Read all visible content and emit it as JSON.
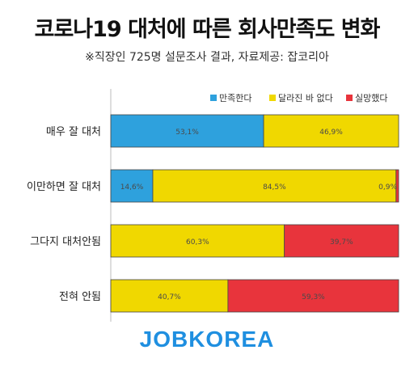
{
  "title": "코로나19 대처에 따른 회사만족도 변화",
  "subtitle": "※직장인 725명 설문조사 결과, 자료제공: 잡코리아",
  "logo_text": "JOBKOREA",
  "colors": {
    "satisfied": "#2ea1dd",
    "unchanged": "#f0d800",
    "disappointed": "#e8343c"
  },
  "chart_data": {
    "type": "bar",
    "orientation": "horizontal",
    "stacked": true,
    "categories": [
      "매우 잘 대처",
      "이만하면 잘 대처",
      "그다지 대처안됨",
      "전혀 안됨"
    ],
    "series": [
      {
        "name": "만족한다",
        "values": [
          53.1,
          14.6,
          0,
          0
        ],
        "labels": [
          "53,1%",
          "14,6%",
          "",
          ""
        ]
      },
      {
        "name": "달라진 바 없다",
        "values": [
          46.9,
          84.5,
          60.3,
          40.7
        ],
        "labels": [
          "46,9%",
          "84,5%",
          "60,3%",
          "40,7%"
        ]
      },
      {
        "name": "실망했다",
        "values": [
          0,
          0.9,
          39.7,
          59.3
        ],
        "labels": [
          "",
          "0,9%",
          "39,7%",
          "59,3%"
        ]
      }
    ],
    "xlim": [
      0,
      100
    ],
    "legend_position": "top-right",
    "grid": false
  }
}
